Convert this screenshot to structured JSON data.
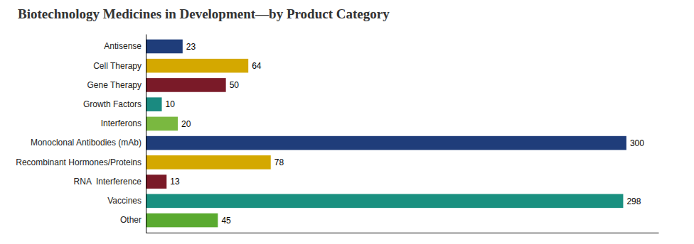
{
  "chart_data": {
    "type": "bar",
    "orientation": "horizontal",
    "title": "Biotechnology Medicines in Development—by Product Category",
    "categories": [
      "Antisense",
      "Cell Therapy",
      "Gene Therapy",
      "Growth Factors",
      "Interferons",
      "Monoclonal Antibodies (mAb)",
      "Recombinant Hormones/Proteins",
      "RNA  Interference",
      "Vaccines",
      "Other"
    ],
    "values": [
      23,
      64,
      50,
      10,
      20,
      300,
      78,
      13,
      298,
      45
    ],
    "colors": [
      "#1f3d7a",
      "#d4a800",
      "#7a1a28",
      "#1a8a80",
      "#7ab840",
      "#1f3d7a",
      "#d4a800",
      "#7a1a28",
      "#1a9080",
      "#5aaa30"
    ],
    "xlim": [
      0,
      320
    ],
    "data_labels": true,
    "tick_labels": "y",
    "grid": false
  }
}
